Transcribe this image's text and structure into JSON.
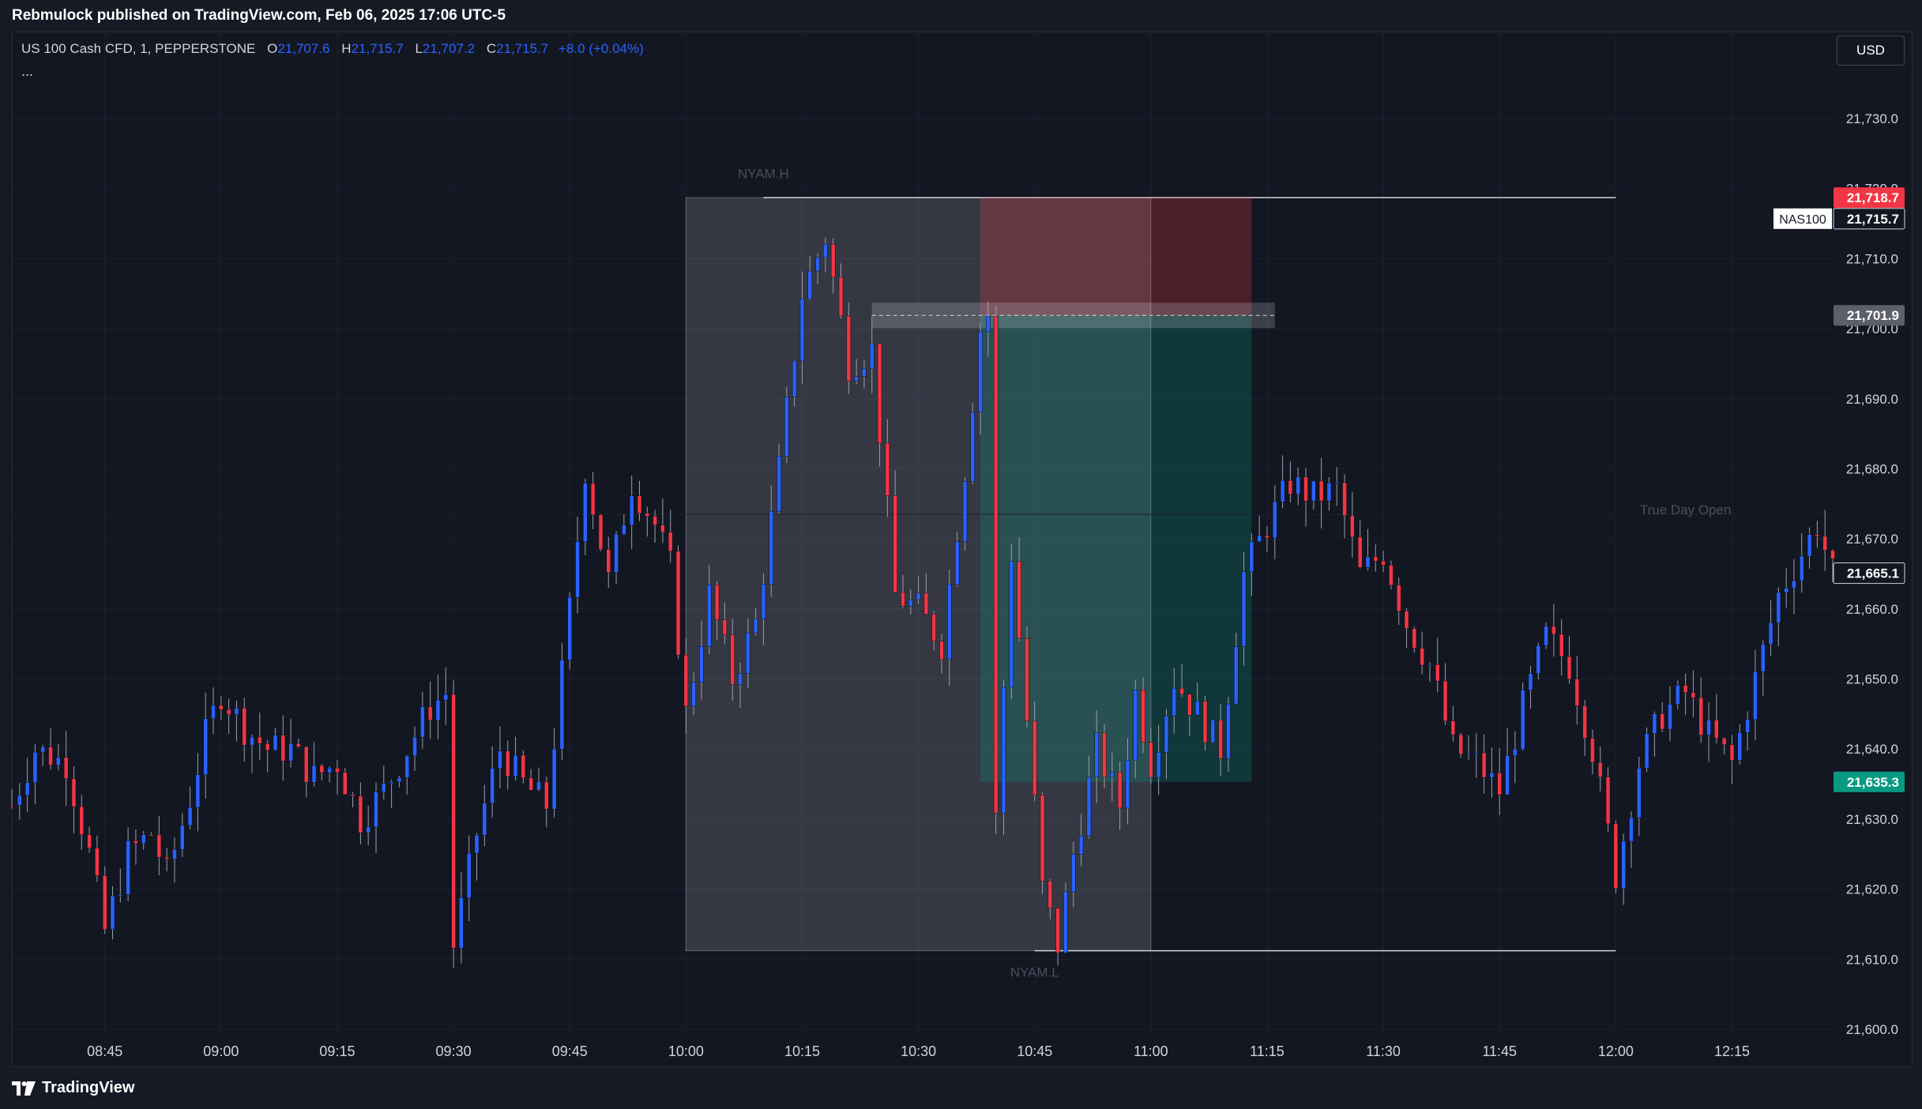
{
  "header": {
    "publisher_text": "Rebmulock published on TradingView.com, Feb 06, 2025 17:06 UTC-5"
  },
  "legend": {
    "symbol_text": "US 100 Cash CFD, 1, PEPPERSTONE",
    "open_label": "O",
    "open": "21,707.6",
    "high_label": "H",
    "high": "21,715.7",
    "low_label": "L",
    "low": "21,707.2",
    "close_label": "C",
    "close": "21,715.7",
    "change": "+8.0 (+0.04%)",
    "more": "..."
  },
  "currency": "USD",
  "footer": {
    "brand": "TradingView"
  },
  "colors": {
    "up": "#2962ff",
    "down": "#f23645",
    "stop_zone": "#f23645",
    "target_zone": "#089981",
    "range_box": "#d1d4dc"
  },
  "chart_data": {
    "type": "candlestick",
    "symbol": "US 100 Cash CFD",
    "interval": "1",
    "ylim": [
      21600,
      21735
    ],
    "xlim": [
      "08:33",
      "12:28"
    ],
    "grid": true,
    "y_ticks": [
      "21,730.0",
      "21,720.0",
      "21,710.0",
      "21,700.0",
      "21,690.0",
      "21,680.0",
      "21,670.0",
      "21,660.0",
      "21,650.0",
      "21,640.0",
      "21,630.0",
      "21,620.0",
      "21,610.0",
      "21,600.0"
    ],
    "x_ticks": [
      "08:45",
      "09:00",
      "09:15",
      "09:30",
      "09:45",
      "10:00",
      "10:15",
      "10:30",
      "10:45",
      "11:00",
      "11:15",
      "11:30",
      "11:45",
      "12:00",
      "12:15"
    ],
    "key_prices": [
      {
        "label": "21,718.7",
        "value": 21718.7,
        "color": "#f23645"
      },
      {
        "label": "21,715.7",
        "value": 21715.7,
        "color": "#131722",
        "tag": "NAS100"
      },
      {
        "label": "21,701.9",
        "value": 21701.9,
        "color": "#5d606b"
      },
      {
        "label": "21,665.1",
        "value": 21665.1,
        "color": "#131722"
      },
      {
        "label": "21,635.3",
        "value": 21635.3,
        "color": "#089981"
      }
    ],
    "annotations": [
      {
        "text": "NYAM.H",
        "time": "10:10",
        "price": 21721.5
      },
      {
        "text": "NYAM.L",
        "time": "10:45",
        "price": 21607.5
      },
      {
        "text": "True Day Open",
        "time": "12:09",
        "price": 21673.5
      }
    ],
    "range_box": {
      "from": "10:00",
      "to": "11:00",
      "high": 21718.7,
      "low": 21611.2,
      "extend_to": "12:00"
    },
    "position": {
      "from": "10:38",
      "to": "11:13",
      "entry": 21701.9,
      "stop": 21718.7,
      "target": 21635.3
    },
    "price_path": [
      [
        "08:33",
        21632
      ],
      [
        "08:36",
        21640
      ],
      [
        "08:40",
        21638
      ],
      [
        "08:43",
        21625
      ],
      [
        "08:45",
        21614
      ],
      [
        "08:48",
        21625
      ],
      [
        "08:51",
        21628
      ],
      [
        "08:53",
        21622
      ],
      [
        "08:56",
        21633
      ],
      [
        "08:58",
        21642
      ],
      [
        "09:00",
        21648
      ],
      [
        "09:03",
        21643
      ],
      [
        "09:06",
        21640
      ],
      [
        "09:09",
        21640
      ],
      [
        "09:12",
        21636
      ],
      [
        "09:15",
        21638
      ],
      [
        "09:18",
        21630
      ],
      [
        "09:21",
        21634
      ],
      [
        "09:24",
        21640
      ],
      [
        "09:27",
        21646
      ],
      [
        "09:29",
        21648
      ],
      [
        "09:30",
        21612
      ],
      [
        "09:33",
        21628
      ],
      [
        "09:36",
        21640
      ],
      [
        "09:39",
        21635
      ],
      [
        "09:42",
        21632
      ],
      [
        "09:45",
        21660
      ],
      [
        "09:47",
        21680
      ],
      [
        "09:50",
        21664
      ],
      [
        "09:53",
        21678
      ],
      [
        "09:56",
        21672
      ],
      [
        "09:58",
        21666
      ],
      [
        "10:00",
        21645
      ],
      [
        "10:03",
        21662
      ],
      [
        "10:06",
        21650
      ],
      [
        "10:09",
        21658
      ],
      [
        "10:12",
        21680
      ],
      [
        "10:15",
        21705
      ],
      [
        "10:18",
        21713
      ],
      [
        "10:21",
        21695
      ],
      [
        "10:24",
        21697
      ],
      [
        "10:27",
        21662
      ],
      [
        "10:30",
        21660
      ],
      [
        "10:33",
        21655
      ],
      [
        "10:36",
        21680
      ],
      [
        "10:38",
        21700
      ],
      [
        "10:39",
        21702
      ],
      [
        "10:40",
        21630
      ],
      [
        "10:42",
        21668
      ],
      [
        "10:44",
        21644
      ],
      [
        "10:46",
        21620
      ],
      [
        "10:48",
        21612
      ],
      [
        "10:50",
        21625
      ],
      [
        "10:53",
        21640
      ],
      [
        "10:56",
        21632
      ],
      [
        "10:58",
        21648
      ],
      [
        "11:00",
        21638
      ],
      [
        "11:03",
        21650
      ],
      [
        "11:06",
        21645
      ],
      [
        "11:09",
        21640
      ],
      [
        "11:12",
        21665
      ],
      [
        "11:15",
        21672
      ],
      [
        "11:18",
        21678
      ],
      [
        "11:21",
        21676
      ],
      [
        "11:24",
        21677
      ],
      [
        "11:27",
        21665
      ],
      [
        "11:30",
        21668
      ],
      [
        "11:33",
        21658
      ],
      [
        "11:36",
        21652
      ],
      [
        "11:39",
        21640
      ],
      [
        "11:42",
        21638
      ],
      [
        "11:45",
        21634
      ],
      [
        "11:48",
        21646
      ],
      [
        "11:51",
        21656
      ],
      [
        "11:54",
        21652
      ],
      [
        "11:57",
        21640
      ],
      [
        "12:00",
        21622
      ],
      [
        "12:03",
        21638
      ],
      [
        "12:06",
        21645
      ],
      [
        "12:09",
        21648
      ],
      [
        "12:12",
        21642
      ],
      [
        "12:15",
        21638
      ],
      [
        "12:18",
        21650
      ],
      [
        "12:21",
        21662
      ],
      [
        "12:24",
        21668
      ],
      [
        "12:26",
        21672
      ],
      [
        "12:28",
        21665
      ]
    ]
  }
}
